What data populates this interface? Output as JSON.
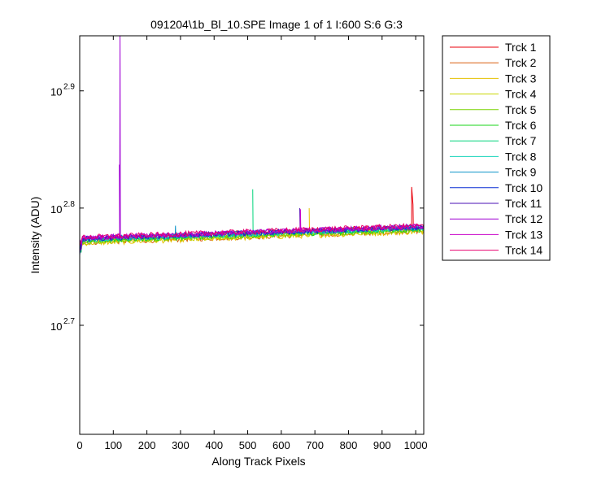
{
  "chart_data": {
    "type": "line",
    "title": "091204\\1b_Bl_10.SPE  Image 1 of 1  I:600  S:6  G:3",
    "xlabel": "Along Track Pixels",
    "ylabel": "Intensity (ADU)",
    "xlim": [
      0,
      1024
    ],
    "ylim": [
      2.607,
      2.947
    ],
    "yscale": "log",
    "xticks": [
      0,
      100,
      200,
      300,
      400,
      500,
      600,
      700,
      800,
      900,
      1000
    ],
    "yticks": [
      {
        "base": "10",
        "exp": "2.7",
        "value": 2.7
      },
      {
        "base": "10",
        "exp": "2.8",
        "value": 2.8
      },
      {
        "base": "10",
        "exp": "2.9",
        "value": 2.9
      }
    ],
    "grid": false,
    "legend_position": "outside-right",
    "series": [
      {
        "name": "Trck 1",
        "color": "#e8000b",
        "start": 2.7735,
        "end": 2.7845,
        "spikes": [
          [
            988,
            2.818
          ],
          [
            992,
            2.803
          ]
        ]
      },
      {
        "name": "Trck 2",
        "color": "#d95f0e",
        "start": 2.7705,
        "end": 2.7805,
        "spikes": []
      },
      {
        "name": "Trck 3",
        "color": "#e5c100",
        "start": 2.77,
        "end": 2.78,
        "spikes": [
          [
            683,
            2.8
          ]
        ]
      },
      {
        "name": "Trck 4",
        "color": "#c8d400",
        "start": 2.771,
        "end": 2.781,
        "spikes": []
      },
      {
        "name": "Trck 5",
        "color": "#79d400",
        "start": 2.7715,
        "end": 2.7815,
        "spikes": []
      },
      {
        "name": "Trck 6",
        "color": "#19d419",
        "start": 2.772,
        "end": 2.782,
        "spikes": []
      },
      {
        "name": "Trck 7",
        "color": "#00d47a",
        "start": 2.773,
        "end": 2.783,
        "spikes": [
          [
            515,
            2.816
          ]
        ]
      },
      {
        "name": "Trck 8",
        "color": "#19d4bc",
        "start": 2.773,
        "end": 2.783,
        "spikes": []
      },
      {
        "name": "Trck 9",
        "color": "#0a93c8",
        "start": 2.7735,
        "end": 2.7835,
        "spikes": [
          [
            285,
            2.785
          ]
        ]
      },
      {
        "name": "Trck 10",
        "color": "#0a2fd4",
        "start": 2.7735,
        "end": 2.7835,
        "spikes": []
      },
      {
        "name": "Trck 11",
        "color": "#4a0fb4",
        "start": 2.774,
        "end": 2.784,
        "spikes": [
          [
            655,
            2.8
          ]
        ]
      },
      {
        "name": "Trck 12",
        "color": "#a000d4",
        "start": 2.7745,
        "end": 2.7845,
        "spikes": [
          [
            120,
            2.947
          ],
          [
            118,
            2.837
          ]
        ]
      },
      {
        "name": "Trck 13",
        "color": "#c800c8",
        "start": 2.7745,
        "end": 2.7845,
        "spikes": [
          [
            657,
            2.799
          ]
        ]
      },
      {
        "name": "Trck 14",
        "color": "#e8006e",
        "start": 2.775,
        "end": 2.785,
        "spikes": []
      }
    ]
  }
}
